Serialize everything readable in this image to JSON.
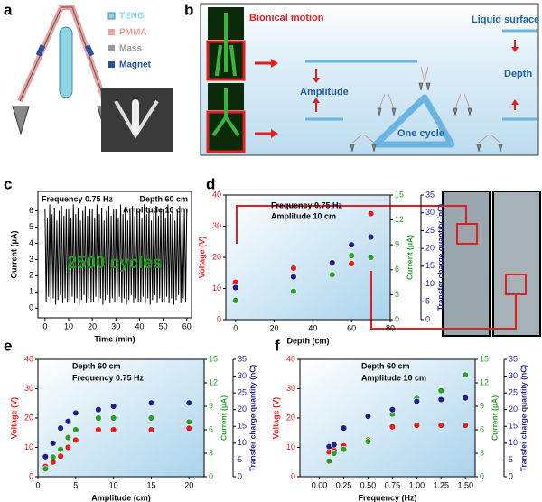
{
  "panel_labels": [
    "a",
    "b",
    "c",
    "d",
    "e",
    "f"
  ],
  "panel_a": {
    "legend": [
      "TENG",
      "PMMA",
      "Mass",
      "Magnet"
    ]
  },
  "panel_b": {
    "bionical_motion": "Bionical motion",
    "liquid_surface": "Liquid surface",
    "amplitude": "Amplitude",
    "depth": "Depth",
    "one_cycle": "One cycle"
  },
  "chart_data": [
    {
      "type": "line",
      "xlabel": "Time (min)",
      "ylabel": "Current (μA)",
      "annotations": [
        "Frequency 0.75 Hz",
        "Depth 60 cm",
        "Amplitude 10 cm",
        "2500 cycles"
      ],
      "xlim": [
        -3,
        62
      ],
      "xticks": [
        0,
        10,
        20,
        30,
        40,
        50,
        60
      ],
      "ylim": [
        -0.6,
        7.2
      ],
      "yticks": [
        0,
        1,
        2,
        3,
        4,
        5,
        6
      ],
      "color": "#000000",
      "x": [
        0,
        0.5,
        1,
        1.5,
        2,
        2.5,
        3,
        3.5,
        4,
        4.5,
        5,
        5.5,
        6,
        6.5,
        7,
        7.5,
        8,
        8.5,
        9,
        9.5,
        10,
        10.5,
        11,
        11.5,
        12,
        12.5,
        13,
        13.5,
        14,
        14.5,
        15,
        15.5,
        16,
        16.5,
        17,
        17.5,
        18,
        18.5,
        19,
        19.5,
        20,
        20.5,
        21,
        21.5,
        22,
        22.5,
        23,
        23.5,
        24,
        24.5,
        25,
        25.5,
        26,
        26.5,
        27,
        27.5,
        28,
        28.5,
        29,
        29.5,
        30,
        30.5,
        31,
        31.5,
        32,
        32.5,
        33,
        33.5,
        34,
        34.5,
        35,
        35.5,
        36,
        36.5,
        37,
        37.5,
        38,
        38.5,
        39,
        39.5,
        40,
        40.5,
        41,
        41.5,
        42,
        42.5,
        43,
        43.5,
        44,
        44.5,
        45,
        45.5,
        46,
        46.5,
        47,
        47.5,
        48,
        48.5,
        49,
        49.5,
        50,
        50.5,
        51,
        51.5,
        52,
        52.5,
        53,
        53.5,
        54,
        54.5,
        55,
        55.5,
        56,
        56.5,
        57,
        57.5,
        58,
        58.5,
        59,
        59.5,
        60
      ],
      "values": [
        6.1,
        0.4,
        5.6,
        0.7,
        6.4,
        0.3,
        5.8,
        0.6,
        6.2,
        0.2,
        5.4,
        0.5,
        6.0,
        0.8,
        6.3,
        0.3,
        5.7,
        0.6,
        6.1,
        0.4,
        6.1,
        0.4,
        5.6,
        0.7,
        6.4,
        0.3,
        5.8,
        0.6,
        6.2,
        0.2,
        5.4,
        0.5,
        6.0,
        0.8,
        6.3,
        0.3,
        5.7,
        0.6,
        6.1,
        0.4,
        6.1,
        0.4,
        5.6,
        0.7,
        6.4,
        0.3,
        5.8,
        0.6,
        6.2,
        0.2,
        5.4,
        0.5,
        6.0,
        0.8,
        6.3,
        0.3,
        5.7,
        0.6,
        6.1,
        0.4,
        6.1,
        0.4,
        5.6,
        0.7,
        6.4,
        0.3,
        5.8,
        0.6,
        6.2,
        0.2,
        5.4,
        0.5,
        6.0,
        0.8,
        6.3,
        0.3,
        5.7,
        0.6,
        6.1,
        0.4,
        6.1,
        0.4,
        5.6,
        0.7,
        6.4,
        0.3,
        5.8,
        0.6,
        6.2,
        0.2,
        5.4,
        0.5,
        6.0,
        0.8,
        6.3,
        0.3,
        5.7,
        0.6,
        6.1,
        0.4,
        6.1,
        0.4,
        5.6,
        0.7,
        6.4,
        0.3,
        5.8,
        0.6,
        6.2,
        0.2,
        5.4,
        0.5,
        6.0,
        0.8,
        6.3,
        0.3,
        5.7,
        0.6,
        6.1,
        0.4,
        6.1
      ]
    },
    {
      "type": "scatter",
      "xlabel": "Depth (cm)",
      "ylabel": "Voltage (V)",
      "y2label": "Current (μA)",
      "y3label": "Transfer charge quantity (nC)",
      "annotations": [
        "Frequency 0.75 Hz",
        "Amplitude 10 cm"
      ],
      "xlim": [
        -5,
        80
      ],
      "xticks": [
        0,
        20,
        40,
        60,
        80
      ],
      "ylim": [
        0,
        40
      ],
      "yticks": [
        0,
        10,
        20,
        30,
        40
      ],
      "y2lim": [
        0,
        15
      ],
      "y2ticks": [
        0,
        3,
        6,
        9,
        12,
        15
      ],
      "y3lim": [
        0,
        35
      ],
      "y3ticks": [
        0,
        5,
        10,
        15,
        20,
        25,
        30,
        35
      ],
      "x": [
        0,
        30,
        50,
        60,
        70
      ],
      "series": [
        {
          "axis": "y",
          "color": "#e02020",
          "values": [
            12,
            16.5,
            18,
            18,
            34
          ]
        },
        {
          "axis": "y2",
          "color": "#2a9d2a",
          "values": [
            2.3,
            3.4,
            5.4,
            7.7,
            7.5
          ]
        },
        {
          "axis": "y3",
          "color": "#1f1f8f",
          "values": [
            9,
            12,
            16,
            21,
            23.2
          ]
        }
      ]
    },
    {
      "type": "scatter",
      "xlabel": "Amplitude (cm)",
      "ylabel": "Voltage (V)",
      "y2label": "Current (μA)",
      "y3label": "Transfer charge quantity (nC)",
      "annotations": [
        "Depth 60 cm",
        "Frequency 0.75 Hz"
      ],
      "xlim": [
        0,
        22
      ],
      "xticks": [
        0,
        5,
        10,
        15,
        20
      ],
      "ylim": [
        0,
        40
      ],
      "yticks": [
        0,
        10,
        20,
        30,
        40
      ],
      "y2lim": [
        0,
        15
      ],
      "y2ticks": [
        0,
        3,
        6,
        9,
        12,
        15
      ],
      "y3lim": [
        0,
        35
      ],
      "y3ticks": [
        0,
        5,
        10,
        15,
        20,
        25,
        30,
        35
      ],
      "x": [
        1,
        2,
        3,
        4,
        5,
        8,
        10,
        15,
        20
      ],
      "series": [
        {
          "axis": "y",
          "color": "#e02020",
          "values": [
            3.5,
            5,
            7,
            10,
            12.5,
            16,
            16,
            16,
            16.5
          ]
        },
        {
          "axis": "y2",
          "color": "#2a9d2a",
          "values": [
            1,
            2.5,
            3.5,
            5,
            6,
            7.5,
            7.5,
            7.5,
            7
          ]
        },
        {
          "axis": "y3",
          "color": "#1f1f8f",
          "values": [
            6,
            10,
            14.5,
            16.5,
            19,
            20,
            21,
            22,
            22
          ]
        }
      ]
    },
    {
      "type": "scatter",
      "xlabel": "Frequency (Hz)",
      "ylabel": "Voltage (V)",
      "y2label": "Current (μA)",
      "y3label": "Transfer charge quantity (nC)",
      "annotations": [
        "Depth 60 cm",
        "Amplitude 10 cm"
      ],
      "xlim": [
        -0.2,
        1.6
      ],
      "xticks": [
        {
          "value": 0,
          "label": "0.00"
        },
        0.25,
        {
          "value": 0.5,
          "label": "0.50"
        },
        0.75,
        {
          "value": 1,
          "label": "1.00"
        },
        1.25,
        {
          "value": 1.5,
          "label": "1.50"
        }
      ],
      "ylim": [
        0,
        40
      ],
      "yticks": [
        0,
        10,
        20,
        30,
        40
      ],
      "y2lim": [
        0,
        15
      ],
      "y2ticks": [
        0,
        3,
        6,
        9,
        12,
        15
      ],
      "y3lim": [
        0,
        35
      ],
      "y3ticks": [
        0,
        5,
        10,
        15,
        20,
        25,
        30,
        35
      ],
      "x": [
        0.1,
        0.15,
        0.25,
        0.5,
        0.75,
        1,
        1.25,
        1.5
      ],
      "series": [
        {
          "axis": "y",
          "color": "#e02020",
          "values": [
            8.5,
            9,
            10.5,
            12.5,
            17,
            17.5,
            17.5,
            17.5
          ]
        },
        {
          "axis": "y2",
          "color": "#2a9d2a",
          "values": [
            2,
            3,
            3.5,
            4.5,
            8,
            10,
            11,
            13
          ]
        },
        {
          "axis": "y3",
          "color": "#1f1f8f",
          "values": [
            9,
            9.5,
            14.5,
            18,
            20,
            22.5,
            23,
            23.5
          ]
        }
      ]
    }
  ]
}
